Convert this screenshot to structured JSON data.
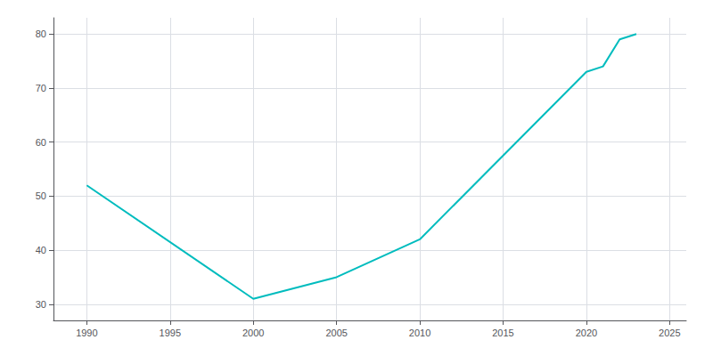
{
  "chart_data": {
    "type": "line",
    "x": [
      1990,
      2000,
      2005,
      2010,
      2020,
      2021,
      2022,
      2023
    ],
    "values": [
      52,
      31,
      35,
      42,
      73,
      74,
      79,
      80
    ],
    "color": "#00BCBE",
    "xlim": [
      1988,
      2026
    ],
    "ylim": [
      27,
      83
    ],
    "xticks": [
      1990,
      1995,
      2000,
      2005,
      2010,
      2015,
      2020,
      2025
    ],
    "yticks": [
      30,
      40,
      50,
      60,
      70,
      80
    ],
    "grid": true
  }
}
